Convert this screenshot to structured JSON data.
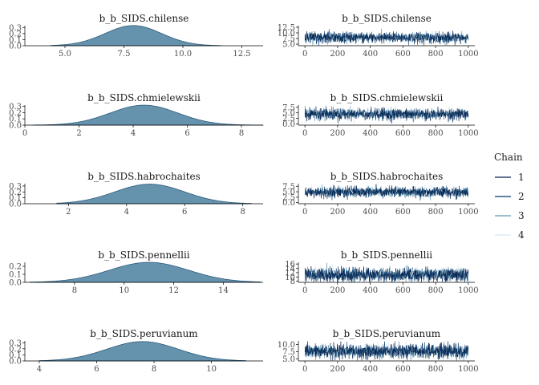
{
  "legend": {
    "title": "Chain",
    "entries": [
      {
        "label": "1",
        "color": "#011f4b"
      },
      {
        "label": "2",
        "color": "#03396c"
      },
      {
        "label": "3",
        "color": "#6497b1"
      },
      {
        "label": "4",
        "color": "#d8e6f2"
      }
    ]
  },
  "colors": {
    "density_fill": "#6593ae",
    "density_line": "#2f5d7c",
    "axis": "#000000"
  },
  "chart_data": [
    {
      "type": "area",
      "kind": "density",
      "title": "b_b_SIDS.chilense",
      "xlim": [
        3.3,
        13.4
      ],
      "xticks": [
        5.0,
        7.5,
        10.0,
        12.5
      ],
      "xtick_labels": [
        "5.0",
        "7.5",
        "10.0",
        "12.5"
      ],
      "ylim": [
        0,
        0.33
      ],
      "yticks": [
        0.0,
        0.1,
        0.2,
        0.3
      ],
      "ytick_labels": [
        "0.0",
        "0.1",
        "0.2",
        "0.3"
      ],
      "density": {
        "mean": 7.9,
        "sd": 1.2,
        "xmin": 4.4,
        "xmax": 11.6
      }
    },
    {
      "type": "line",
      "kind": "trace",
      "title": "b_b_SIDS.chilense",
      "xlim": [
        -40,
        1040
      ],
      "xticks": [
        0,
        200,
        400,
        600,
        800,
        1000
      ],
      "xtick_labels": [
        "0",
        "200",
        "400",
        "600",
        "800",
        "1000"
      ],
      "ylim": [
        4.3,
        13.2
      ],
      "yticks": [
        5.0,
        7.5,
        10.0,
        12.5
      ],
      "ytick_labels": [
        "5.0",
        "7.5",
        "10.0",
        "12.5"
      ],
      "trace": {
        "mean": 7.9,
        "sd": 1.2
      }
    },
    {
      "type": "area",
      "kind": "density",
      "title": "b_b_SIDS.chmielewskii",
      "xlim": [
        0,
        8.8
      ],
      "xticks": [
        0,
        2,
        4,
        6,
        8
      ],
      "xtick_labels": [
        "0",
        "2",
        "4",
        "6",
        "8"
      ],
      "ylim": [
        0,
        0.32
      ],
      "yticks": [
        0.0,
        0.1,
        0.2,
        0.3
      ],
      "ytick_labels": [
        "0.0",
        "0.1",
        "0.2",
        "0.3"
      ],
      "density": {
        "mean": 4.4,
        "sd": 1.25,
        "xmin": 0.3,
        "xmax": 8.8
      }
    },
    {
      "type": "line",
      "kind": "trace",
      "title": "b_b_SIDS.chmielewskii",
      "xlim": [
        -40,
        1040
      ],
      "xticks": [
        0,
        200,
        400,
        600,
        800,
        1000
      ],
      "xtick_labels": [
        "0",
        "200",
        "400",
        "600",
        "800",
        "1000"
      ],
      "ylim": [
        -0.5,
        8.5
      ],
      "yticks": [
        0.0,
        2.5,
        5.0,
        7.5
      ],
      "ytick_labels": [
        "0.0",
        "2.5",
        "5.0",
        "7.5"
      ],
      "trace": {
        "mean": 4.4,
        "sd": 1.25
      }
    },
    {
      "type": "area",
      "kind": "density",
      "title": "b_b_SIDS.habrochaites",
      "xlim": [
        0.5,
        8.7
      ],
      "xticks": [
        2,
        4,
        6,
        8
      ],
      "xtick_labels": [
        "2",
        "4",
        "6",
        "8"
      ],
      "ylim": [
        0,
        0.34
      ],
      "yticks": [
        0.0,
        0.1,
        0.2,
        0.3
      ],
      "ytick_labels": [
        "0.0",
        "0.1",
        "0.2",
        "0.3"
      ],
      "density": {
        "mean": 4.8,
        "sd": 1.2,
        "xmin": 1.6,
        "xmax": 8.3
      }
    },
    {
      "type": "line",
      "kind": "trace",
      "title": "b_b_SIDS.habrochaites",
      "xlim": [
        -40,
        1040
      ],
      "xticks": [
        0,
        200,
        400,
        600,
        800,
        1000
      ],
      "xtick_labels": [
        "0",
        "200",
        "400",
        "600",
        "800",
        "1000"
      ],
      "ylim": [
        -0.5,
        8.7
      ],
      "yticks": [
        0.0,
        2.5,
        5.0,
        7.5
      ],
      "ytick_labels": [
        "0.0",
        "2.5",
        "5.0",
        "7.5"
      ],
      "trace": {
        "mean": 4.8,
        "sd": 1.2
      }
    },
    {
      "type": "area",
      "kind": "density",
      "title": "b_b_SIDS.pennellii",
      "xlim": [
        6.0,
        15.6
      ],
      "xticks": [
        8,
        10,
        12,
        14
      ],
      "xtick_labels": [
        "8",
        "10",
        "12",
        "14"
      ],
      "ylim": [
        0,
        0.25
      ],
      "yticks": [
        0.0,
        0.1,
        0.2
      ],
      "ytick_labels": [
        "0.0",
        "0.1",
        "0.2"
      ],
      "density": {
        "mean": 11.0,
        "sd": 1.6,
        "xmin": 6.2,
        "xmax": 15.5
      }
    },
    {
      "type": "line",
      "kind": "trace",
      "title": "b_b_SIDS.pennellii",
      "xlim": [
        -40,
        1040
      ],
      "xticks": [
        0,
        200,
        400,
        600,
        800,
        1000
      ],
      "xtick_labels": [
        "0",
        "200",
        "400",
        "600",
        "800",
        "1000"
      ],
      "ylim": [
        7.5,
        16.8
      ],
      "yticks": [
        8,
        10,
        12,
        14,
        16
      ],
      "ytick_labels": [
        "8",
        "10",
        "12",
        "14",
        "16"
      ],
      "trace": {
        "mean": 11.0,
        "sd": 1.6
      }
    },
    {
      "type": "area",
      "kind": "density",
      "title": "b_b_SIDS.peruvianum",
      "xlim": [
        3.5,
        11.8
      ],
      "xticks": [
        4,
        6,
        8,
        10
      ],
      "xtick_labels": [
        "4",
        "6",
        "8",
        "10"
      ],
      "ylim": [
        0,
        0.33
      ],
      "yticks": [
        0.0,
        0.1,
        0.2,
        0.3
      ],
      "ytick_labels": [
        "0.0",
        "0.1",
        "0.2",
        "0.3"
      ],
      "density": {
        "mean": 7.6,
        "sd": 1.25,
        "xmin": 4.0,
        "xmax": 11.2
      }
    },
    {
      "type": "line",
      "kind": "trace",
      "title": "b_b_SIDS.peruvianum",
      "xlim": [
        -40,
        1040
      ],
      "xticks": [
        0,
        200,
        400,
        600,
        800,
        1000
      ],
      "xtick_labels": [
        "0",
        "200",
        "400",
        "600",
        "800",
        "1000"
      ],
      "ylim": [
        4.3,
        11.2
      ],
      "yticks": [
        5.0,
        7.5,
        10.0
      ],
      "ytick_labels": [
        "5.0",
        "7.5",
        "10.0"
      ],
      "trace": {
        "mean": 7.6,
        "sd": 1.25
      }
    }
  ]
}
